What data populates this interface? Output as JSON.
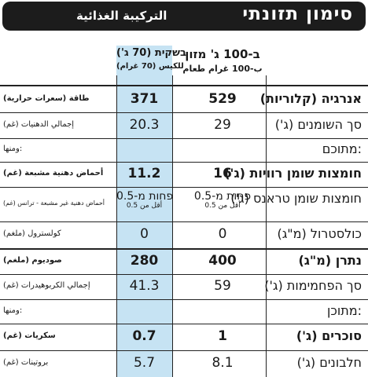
{
  "header": {
    "title_he": "סימון תזונתי",
    "title_ar": "التركيبة الغذائية"
  },
  "columns": {
    "per100_line1": "ב-100 ג' מזון",
    "per100_line2": "ب-100 غرام طعام",
    "bag_line1": "בשקית (70 ג')",
    "bag_line2": "للكيس (70 غرام)"
  },
  "rows": [
    {
      "he": "אנרגיה (קלוריות)",
      "ar": "طاقة (سعرات حرارية)",
      "per100": "529",
      "bag": "371",
      "bold": true
    },
    {
      "he": "סך השומנים (ג')",
      "ar": "إجمالي الدهنيات (غم)",
      "per100": "29",
      "bag": "20.3",
      "bold": false
    },
    {
      "he": "מתוכם:",
      "ar": "ومنها:",
      "per100": "",
      "bag": "",
      "bold": false
    },
    {
      "he": "חומצות שומן רוויות (ג')",
      "ar": "أحماض دهنية مشبعة (غم)",
      "per100": "16",
      "bag": "11.2",
      "bold": true
    },
    {
      "he": "חומצות שומן טראנס (ג')",
      "ar": "أحماض دهنية غير مشبعة - ترانس (غم)",
      "per100": "פחות מ-0.5",
      "per100_sub": "أقل من 0.5",
      "bag": "פחות מ-0.5",
      "bag_sub": "أقل من 0.5",
      "bold": false
    },
    {
      "he": "כולסטרול (מ\"ג)",
      "ar": "كولسترول (ملغم)",
      "per100": "0",
      "bag": "0",
      "bold": false
    },
    {
      "he": "נתרן (מ\"ג)",
      "ar": "صوديوم (ملغم)",
      "per100": "400",
      "bag": "280",
      "bold": true
    },
    {
      "he": "סך הפחמימות (ג')",
      "ar": "إجمالي الكربوهيدرات (غم)",
      "per100": "59",
      "bag": "41.3",
      "bold": false
    },
    {
      "he": "מתוכן:",
      "ar": "ومنها:",
      "per100": "",
      "bag": "",
      "bold": false
    },
    {
      "he": "סוכרים (ג')",
      "ar": "سكريات (غم)",
      "per100": "1",
      "bag": "0.7",
      "bold": true
    },
    {
      "he": "חלבונים (ג')",
      "ar": "بروتينات (غم)",
      "per100": "8.1",
      "bag": "5.7",
      "bold": false
    }
  ]
}
